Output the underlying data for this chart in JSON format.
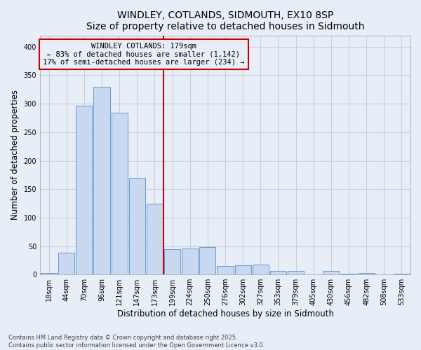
{
  "title": "WINDLEY, COTLANDS, SIDMOUTH, EX10 8SP",
  "subtitle": "Size of property relative to detached houses in Sidmouth",
  "xlabel": "Distribution of detached houses by size in Sidmouth",
  "ylabel": "Number of detached properties",
  "categories": [
    "18sqm",
    "44sqm",
    "70sqm",
    "96sqm",
    "121sqm",
    "147sqm",
    "173sqm",
    "199sqm",
    "224sqm",
    "250sqm",
    "276sqm",
    "302sqm",
    "327sqm",
    "353sqm",
    "379sqm",
    "405sqm",
    "430sqm",
    "456sqm",
    "482sqm",
    "508sqm",
    "533sqm"
  ],
  "values": [
    3,
    38,
    297,
    330,
    284,
    170,
    125,
    45,
    46,
    48,
    15,
    16,
    17,
    6,
    6,
    0,
    7,
    1,
    3,
    0,
    2
  ],
  "bar_color": "#c8d8f0",
  "bar_edge_color": "#6699cc",
  "vline_color": "#cc0000",
  "vline_pos": 7,
  "annotation_text": "WINDLEY COTLANDS: 179sqm\n← 83% of detached houses are smaller (1,142)\n17% of semi-detached houses are larger (234) →",
  "annotation_box_color": "#cc0000",
  "ylim": [
    0,
    420
  ],
  "yticks": [
    0,
    50,
    100,
    150,
    200,
    250,
    300,
    350,
    400
  ],
  "footer_text": "Contains HM Land Registry data © Crown copyright and database right 2025.\nContains public sector information licensed under the Open Government Licence v3.0.",
  "bg_color": "#e8eef8",
  "grid_color": "#c8cfd8",
  "title_fontsize": 10,
  "tick_fontsize": 7,
  "label_fontsize": 8.5,
  "ann_fontsize": 7.5
}
